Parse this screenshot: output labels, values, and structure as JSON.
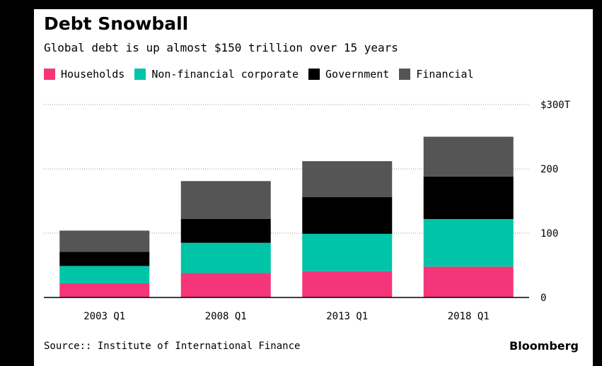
{
  "title": "Debt Snowball",
  "subtitle": "Global debt is up almost $150 trillion over 15 years",
  "source": "Source:: Institute of International Finance",
  "brand": "Bloomberg",
  "colors": {
    "households": "#f5357a",
    "non_financial": "#00c4a7",
    "government": "#000000",
    "financial": "#555555",
    "grid": "#999999",
    "axis": "#000000"
  },
  "chart_data": {
    "type": "bar",
    "stacked": true,
    "categories": [
      "2003 Q1",
      "2008 Q1",
      "2013 Q1",
      "2018 Q1"
    ],
    "series": [
      {
        "name": "Households",
        "values": [
          22,
          38,
          41,
          48
        ]
      },
      {
        "name": "Non-financial corporate",
        "values": [
          27,
          47,
          58,
          74
        ]
      },
      {
        "name": "Government",
        "values": [
          22,
          37,
          57,
          66
        ]
      },
      {
        "name": "Financial",
        "values": [
          33,
          59,
          56,
          62
        ]
      }
    ],
    "y_ticks": [
      {
        "value": 0,
        "label": "0"
      },
      {
        "value": 100,
        "label": "100"
      },
      {
        "value": 200,
        "label": "200"
      },
      {
        "value": 300,
        "label": "$300T"
      }
    ],
    "ylim": [
      0,
      300
    ],
    "grid": true,
    "legend": "top-left",
    "y_axis_position": "right"
  }
}
